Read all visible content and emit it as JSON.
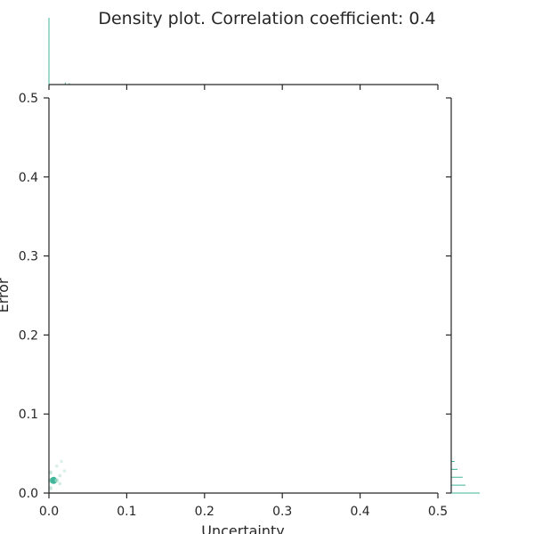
{
  "chart_data": {
    "type": "heatmap",
    "title": "Density plot. Correlation coefficient: 0.4",
    "xlabel": "Uncertainty",
    "ylabel": "Error",
    "xlim": [
      0,
      0.5
    ],
    "ylim": [
      0,
      0.5
    ],
    "x_ticks": [
      "0.0",
      "0.1",
      "0.2",
      "0.3",
      "0.4",
      "0.5"
    ],
    "y_ticks": [
      "0.0",
      "0.1",
      "0.2",
      "0.3",
      "0.4",
      "0.5"
    ],
    "grid": false,
    "legend": "none",
    "colors": {
      "density": "#3fb59a",
      "density_light": "#a8dcc9",
      "axis": "#262626"
    },
    "density_cells": [
      {
        "x": 0.002,
        "y": 0.006,
        "density": 0.3
      },
      {
        "x": 0.002,
        "y": 0.016,
        "density": 0.5
      },
      {
        "x": 0.006,
        "y": 0.016,
        "density": 1.0
      },
      {
        "x": 0.002,
        "y": 0.026,
        "density": 0.3
      },
      {
        "x": 0.01,
        "y": 0.016,
        "density": 0.35
      },
      {
        "x": 0.014,
        "y": 0.012,
        "density": 0.15
      },
      {
        "x": 0.014,
        "y": 0.022,
        "density": 0.15
      },
      {
        "x": 0.01,
        "y": 0.034,
        "density": 0.1
      },
      {
        "x": 0.016,
        "y": 0.04,
        "density": 0.08
      },
      {
        "x": 0.02,
        "y": 0.028,
        "density": 0.08
      }
    ],
    "x_marginal": [
      {
        "x": 0.0,
        "count": 1.0
      },
      {
        "x": 0.021,
        "count": 0.03
      },
      {
        "x": 0.026,
        "count": 0.02
      }
    ],
    "y_marginal": [
      {
        "y": 0.0,
        "count": 1.0
      },
      {
        "y": 0.01,
        "count": 0.5
      },
      {
        "y": 0.02,
        "count": 0.4
      },
      {
        "y": 0.03,
        "count": 0.22
      },
      {
        "y": 0.04,
        "count": 0.12
      }
    ]
  }
}
